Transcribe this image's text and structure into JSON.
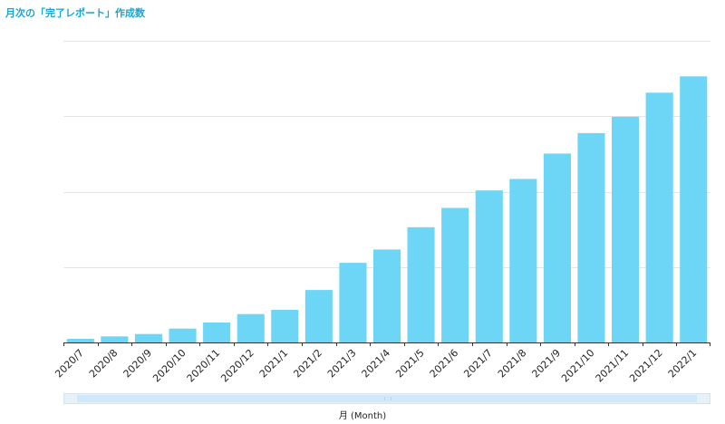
{
  "title": "月次の「完了レポート」作成数",
  "chart_data": {
    "type": "bar",
    "title": "月次の「完了レポート」作成数",
    "xlabel": "月 (Month)",
    "ylabel": "",
    "categories": [
      "2020/7",
      "2020/8",
      "2020/9",
      "2020/10",
      "2020/11",
      "2020/12",
      "2021/1",
      "2021/2",
      "2021/3",
      "2021/4",
      "2021/5",
      "2021/6",
      "2021/7",
      "2021/8",
      "2021/9",
      "2021/10",
      "2021/11",
      "2021/12",
      "2022/1"
    ],
    "values": [
      1.2,
      2.0,
      2.8,
      4.6,
      6.6,
      9.4,
      10.8,
      17.4,
      26.4,
      30.8,
      38.2,
      44.6,
      50.4,
      54.2,
      62.6,
      69.4,
      74.8,
      82.8,
      88.2
    ],
    "ylim": [
      0,
      100
    ],
    "grid": true,
    "color": "#6dd6f7"
  },
  "scrollbar": {
    "label": "scroll-handle"
  }
}
